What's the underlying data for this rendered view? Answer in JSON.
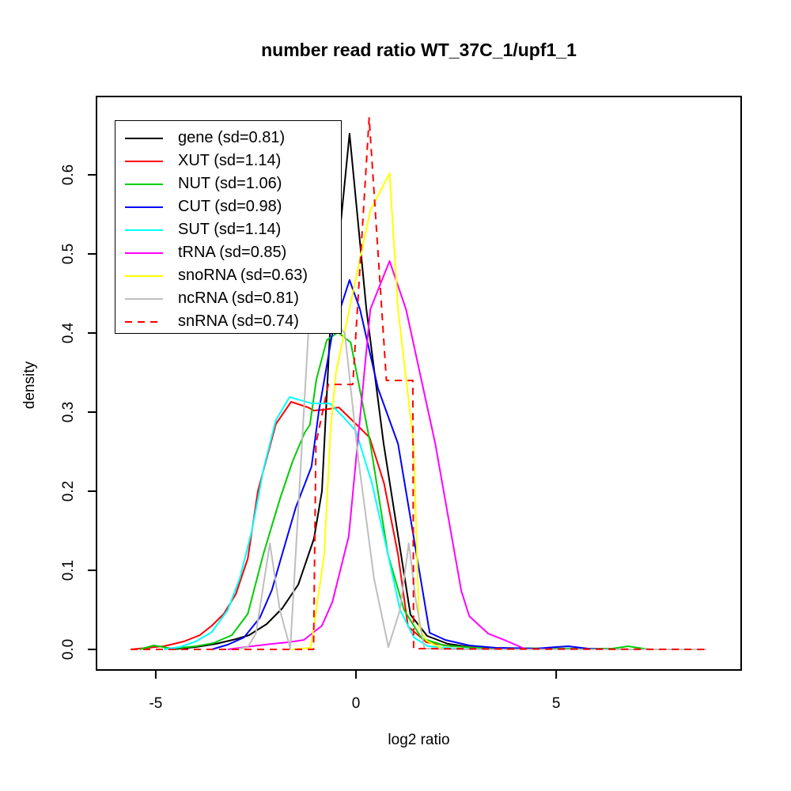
{
  "chart_data": {
    "type": "line",
    "title": "number read ratio WT_37C_1/upf1_1",
    "xlabel": "log2 ratio",
    "ylabel": "density",
    "grid": false,
    "legend_position": "top-left",
    "xlim": [
      -6.48,
      9.62
    ],
    "ylim": [
      -0.026,
      0.699
    ],
    "x_ticks": [
      "-5",
      "0",
      "5"
    ],
    "x_tick_values": [
      -5,
      0,
      5
    ],
    "y_ticks": [
      "0.0",
      "0.1",
      "0.2",
      "0.3",
      "0.4",
      "0.5",
      "0.6"
    ],
    "y_tick_values": [
      0.0,
      0.1,
      0.2,
      0.3,
      0.4,
      0.5,
      0.6
    ],
    "series": [
      {
        "name": "gene",
        "label": "gene (sd=0.81)",
        "color": "#000000",
        "dash": null,
        "points": [
          [
            -4.6,
            0
          ],
          [
            -4.0,
            0.003
          ],
          [
            -3.5,
            0.007
          ],
          [
            -3.0,
            0.013
          ],
          [
            -2.67,
            0.018
          ],
          [
            -2.23,
            0.032
          ],
          [
            -1.84,
            0.052
          ],
          [
            -1.44,
            0.082
          ],
          [
            -1.05,
            0.14
          ],
          [
            -0.85,
            0.2
          ],
          [
            -0.65,
            0.4
          ],
          [
            -0.16,
            0.652
          ],
          [
            0.26,
            0.43
          ],
          [
            0.69,
            0.26
          ],
          [
            1.36,
            0.044
          ],
          [
            1.78,
            0.017
          ],
          [
            2.3,
            0.007
          ],
          [
            3.0,
            0.002
          ],
          [
            4.2,
            0
          ]
        ]
      },
      {
        "name": "XUT",
        "label": "XUT (sd=1.14)",
        "color": "#FF0000",
        "dash": null,
        "points": [
          [
            -5.63,
            0
          ],
          [
            -4.8,
            0.004
          ],
          [
            -4.3,
            0.01
          ],
          [
            -3.9,
            0.018
          ],
          [
            -3.6,
            0.03
          ],
          [
            -3.3,
            0.045
          ],
          [
            -3.0,
            0.07
          ],
          [
            -2.7,
            0.115
          ],
          [
            -2.45,
            0.2
          ],
          [
            -2.0,
            0.285
          ],
          [
            -1.62,
            0.313
          ],
          [
            -1.2,
            0.306
          ],
          [
            -1.05,
            0.302
          ],
          [
            -0.8,
            0.303
          ],
          [
            -0.43,
            0.306
          ],
          [
            0.0,
            0.285
          ],
          [
            0.34,
            0.268
          ],
          [
            0.7,
            0.21
          ],
          [
            1.05,
            0.12
          ],
          [
            1.3,
            0.029
          ],
          [
            1.76,
            0.009
          ],
          [
            2.4,
            0.004
          ],
          [
            3.3,
            0.002
          ],
          [
            4.3,
            0
          ]
        ]
      },
      {
        "name": "NUT",
        "label": "NUT (sd=1.06)",
        "color": "#00CD00",
        "dash": null,
        "points": [
          [
            -5.4,
            0
          ],
          [
            -5.05,
            0.005
          ],
          [
            -4.6,
            0.001
          ],
          [
            -4.0,
            0.004
          ],
          [
            -3.56,
            0.008
          ],
          [
            -3.1,
            0.018
          ],
          [
            -2.7,
            0.045
          ],
          [
            -2.31,
            0.121
          ],
          [
            -1.9,
            0.19
          ],
          [
            -1.58,
            0.238
          ],
          [
            -1.28,
            0.274
          ],
          [
            -1.15,
            0.284
          ],
          [
            -0.99,
            0.341
          ],
          [
            -0.73,
            0.391
          ],
          [
            -0.45,
            0.401
          ],
          [
            -0.13,
            0.388
          ],
          [
            0.36,
            0.26
          ],
          [
            0.8,
            0.12
          ],
          [
            1.2,
            0.05
          ],
          [
            1.64,
            0.014
          ],
          [
            2.2,
            0.005
          ],
          [
            3.0,
            0.002
          ],
          [
            5.5,
            0.001
          ],
          [
            6.4,
            0.001
          ],
          [
            6.8,
            0.004
          ],
          [
            7.3,
            0
          ]
        ]
      },
      {
        "name": "CUT",
        "label": "CUT (sd=0.98)",
        "color": "#0000FF",
        "dash": null,
        "points": [
          [
            -3.6,
            0
          ],
          [
            -3.2,
            0.006
          ],
          [
            -2.8,
            0.015
          ],
          [
            -2.4,
            0.04
          ],
          [
            -2.1,
            0.075
          ],
          [
            -1.84,
            0.121
          ],
          [
            -1.5,
            0.18
          ],
          [
            -1.11,
            0.231
          ],
          [
            -0.93,
            0.3
          ],
          [
            -0.59,
            0.4
          ],
          [
            -0.16,
            0.467
          ],
          [
            0.1,
            0.43
          ],
          [
            0.55,
            0.33
          ],
          [
            1.05,
            0.26
          ],
          [
            1.84,
            0.021
          ],
          [
            2.23,
            0.012
          ],
          [
            2.83,
            0.005
          ],
          [
            3.5,
            0.002
          ],
          [
            4.5,
            0.001
          ],
          [
            5.0,
            0.003
          ],
          [
            5.3,
            0.004
          ],
          [
            5.8,
            0.001
          ],
          [
            6.3,
            0
          ]
        ]
      },
      {
        "name": "SUT",
        "label": "SUT (sd=1.14)",
        "color": "#00FFFF",
        "dash": null,
        "points": [
          [
            -4.8,
            0
          ],
          [
            -4.4,
            0.003
          ],
          [
            -4.0,
            0.01
          ],
          [
            -3.6,
            0.022
          ],
          [
            -3.2,
            0.05
          ],
          [
            -2.9,
            0.09
          ],
          [
            -2.6,
            0.15
          ],
          [
            -2.3,
            0.23
          ],
          [
            -2.0,
            0.29
          ],
          [
            -1.66,
            0.319
          ],
          [
            -1.1,
            0.311
          ],
          [
            -0.65,
            0.311
          ],
          [
            -0.3,
            0.293
          ],
          [
            0.0,
            0.276
          ],
          [
            0.4,
            0.21
          ],
          [
            0.8,
            0.12
          ],
          [
            1.1,
            0.05
          ],
          [
            1.45,
            0.015
          ],
          [
            1.8,
            0.004
          ],
          [
            2.5,
            0.001
          ],
          [
            3.3,
            0
          ]
        ]
      },
      {
        "name": "tRNA",
        "label": "tRNA (sd=0.85)",
        "color": "#FF00FF",
        "dash": null,
        "points": [
          [
            -3.2,
            0
          ],
          [
            -2.6,
            0.004
          ],
          [
            -2.1,
            0.007
          ],
          [
            -1.7,
            0.009
          ],
          [
            -1.3,
            0.012
          ],
          [
            -0.85,
            0.03
          ],
          [
            -0.59,
            0.06
          ],
          [
            -0.18,
            0.143
          ],
          [
            0.36,
            0.43
          ],
          [
            0.84,
            0.491
          ],
          [
            1.25,
            0.43
          ],
          [
            1.98,
            0.26
          ],
          [
            2.63,
            0.074
          ],
          [
            2.83,
            0.042
          ],
          [
            3.3,
            0.02
          ],
          [
            3.75,
            0.011
          ],
          [
            4.25,
            0
          ]
        ]
      },
      {
        "name": "snoRNA",
        "label": "snoRNA (sd=0.63)",
        "color": "#FFFF00",
        "dash": null,
        "points": [
          [
            -1.6,
            0
          ],
          [
            -1.13,
            0.002
          ],
          [
            -0.99,
            0.05
          ],
          [
            -0.79,
            0.121
          ],
          [
            -0.63,
            0.281
          ],
          [
            -0.5,
            0.35
          ],
          [
            0.36,
            0.555
          ],
          [
            0.84,
            0.602
          ],
          [
            1.05,
            0.43
          ],
          [
            1.44,
            0.26
          ],
          [
            1.58,
            0.027
          ],
          [
            1.76,
            0.011
          ],
          [
            2.2,
            0
          ]
        ]
      },
      {
        "name": "ncRNA",
        "label": "ncRNA (sd=0.81)",
        "color": "#BEBEBE",
        "dash": null,
        "points": [
          [
            -3.0,
            0
          ],
          [
            -2.7,
            0.003
          ],
          [
            -2.5,
            0.02
          ],
          [
            -2.15,
            0.134
          ],
          [
            -1.9,
            0.05
          ],
          [
            -1.64,
            0.001
          ],
          [
            -1.19,
            0.4
          ],
          [
            -0.9,
            0.43
          ],
          [
            -0.28,
            0.4
          ],
          [
            0.06,
            0.24
          ],
          [
            0.45,
            0.09
          ],
          [
            0.81,
            0.003
          ],
          [
            1.1,
            0.05
          ],
          [
            1.32,
            0.134
          ],
          [
            1.5,
            0.06
          ],
          [
            1.71,
            0.001
          ],
          [
            2.5,
            0
          ],
          [
            8.75,
            0
          ]
        ]
      },
      {
        "name": "snRNA",
        "label": "snRNA (sd=0.74)",
        "color": "#FF0000",
        "dash": "9,7",
        "points": [
          [
            -5.63,
            0
          ],
          [
            -1.06,
            0
          ],
          [
            -1.0,
            0.26
          ],
          [
            -0.69,
            0.335
          ],
          [
            -0.08,
            0.335
          ],
          [
            0.33,
            0.672
          ],
          [
            0.76,
            0.34
          ],
          [
            1.42,
            0.34
          ],
          [
            1.44,
            0.001
          ],
          [
            8.75,
            0
          ]
        ]
      }
    ]
  }
}
